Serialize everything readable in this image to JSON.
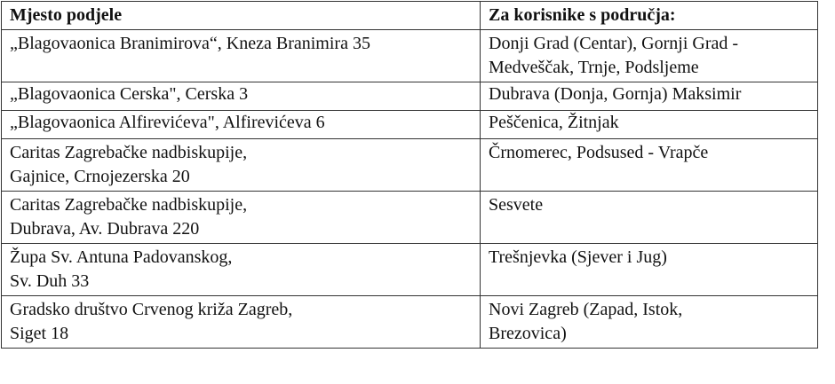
{
  "table": {
    "headers": [
      "Mjesto podjele",
      "Za korisnike s područja:"
    ],
    "rows": [
      {
        "location": [
          "„Blagovaonica Branimirova“, Kneza Branimira 35"
        ],
        "area": [
          "Donji Grad (Centar), Gornji Grad -",
          "Medveščak, Trnje, Podsljeme"
        ]
      },
      {
        "location": [
          "„Blagovaonica Cerska\", Cerska 3"
        ],
        "area": [
          "Dubrava (Donja, Gornja) Maksimir"
        ]
      },
      {
        "location": [
          "„Blagovaonica Alfirevićeva\", Alfirevićeva 6"
        ],
        "area": [
          "Peščenica, Žitnjak"
        ]
      },
      {
        "location": [
          "Caritas Zagrebačke nadbiskupije,",
          "Gajnice, Crnojezerska 20"
        ],
        "area": [
          "Črnomerec, Podsused - Vrapče"
        ]
      },
      {
        "location": [
          "Caritas Zagrebačke nadbiskupije,",
          "Dubrava, Av. Dubrava 220"
        ],
        "area": [
          "Sesvete"
        ]
      },
      {
        "location": [
          "Župa Sv. Antuna Padovanskog,",
          "Sv. Duh 33"
        ],
        "area": [
          "Trešnjevka (Sjever i Jug)"
        ]
      },
      {
        "location": [
          "Gradsko društvo Crvenog križa Zagreb,",
          "Siget 18"
        ],
        "area": [
          "Novi Zagreb (Zapad, Istok,",
          "Brezovica)"
        ]
      }
    ]
  }
}
